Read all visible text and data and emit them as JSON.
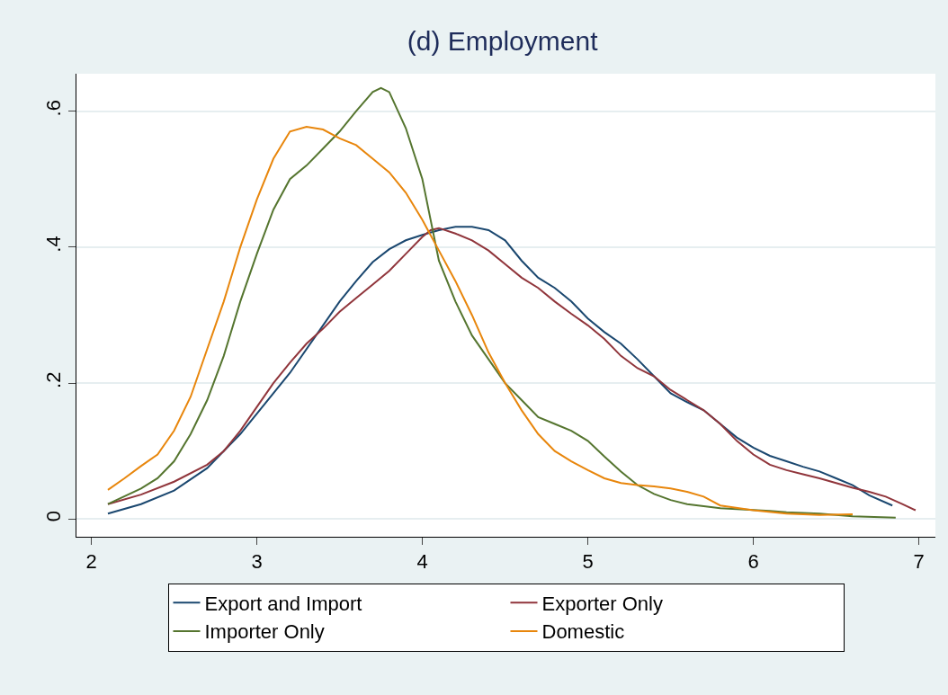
{
  "chart_data": {
    "type": "line",
    "title": "(d) Employment",
    "legend": "bottom",
    "grid": "y",
    "line_style": "solid",
    "marker": "none",
    "xlim": [
      1.91,
      7.1
    ],
    "xticks": [
      2,
      3,
      4,
      5,
      6,
      7
    ],
    "ylim": [
      -0.026,
      0.655
    ],
    "yticks": [
      0,
      {
        "value": 0.2,
        "label": ".2"
      },
      {
        "value": 0.4,
        "label": ".4"
      },
      {
        "value": 0.6,
        "label": ".6"
      }
    ],
    "series": [
      {
        "name": "Export and Import",
        "color": "#1a476f",
        "x": [
          2.1,
          2.3,
          2.5,
          2.7,
          2.9,
          3.0,
          3.2,
          3.4,
          3.5,
          3.6,
          3.7,
          3.8,
          3.9,
          4.0,
          4.1,
          4.2,
          4.3,
          4.4,
          4.5,
          4.6,
          4.7,
          4.8,
          4.9,
          5.0,
          5.1,
          5.2,
          5.3,
          5.4,
          5.5,
          5.6,
          5.7,
          5.8,
          5.9,
          6.0,
          6.1,
          6.2,
          6.3,
          6.4,
          6.5,
          6.6,
          6.7,
          6.84
        ],
        "values": [
          0.008,
          0.022,
          0.042,
          0.075,
          0.125,
          0.155,
          0.215,
          0.285,
          0.32,
          0.35,
          0.378,
          0.397,
          0.41,
          0.418,
          0.425,
          0.43,
          0.43,
          0.425,
          0.41,
          0.38,
          0.355,
          0.34,
          0.32,
          0.295,
          0.275,
          0.258,
          0.235,
          0.21,
          0.185,
          0.172,
          0.16,
          0.14,
          0.12,
          0.105,
          0.093,
          0.085,
          0.077,
          0.07,
          0.06,
          0.05,
          0.035,
          0.02
        ]
      },
      {
        "name": "Exporter Only",
        "color": "#90353b",
        "x": [
          2.1,
          2.3,
          2.5,
          2.7,
          2.8,
          2.9,
          3.0,
          3.1,
          3.2,
          3.3,
          3.4,
          3.5,
          3.6,
          3.7,
          3.8,
          3.9,
          4.0,
          4.05,
          4.1,
          4.2,
          4.3,
          4.4,
          4.5,
          4.6,
          4.7,
          4.8,
          4.9,
          5.0,
          5.1,
          5.2,
          5.3,
          5.4,
          5.5,
          5.6,
          5.7,
          5.8,
          5.9,
          6.0,
          6.1,
          6.2,
          6.3,
          6.4,
          6.5,
          6.6,
          6.7,
          6.8,
          6.9,
          6.98
        ],
        "values": [
          0.022,
          0.036,
          0.055,
          0.08,
          0.1,
          0.13,
          0.165,
          0.2,
          0.23,
          0.258,
          0.28,
          0.305,
          0.325,
          0.345,
          0.365,
          0.39,
          0.415,
          0.425,
          0.428,
          0.42,
          0.41,
          0.395,
          0.375,
          0.355,
          0.34,
          0.32,
          0.302,
          0.285,
          0.265,
          0.24,
          0.222,
          0.21,
          0.19,
          0.175,
          0.16,
          0.14,
          0.115,
          0.095,
          0.08,
          0.072,
          0.066,
          0.06,
          0.053,
          0.046,
          0.04,
          0.033,
          0.022,
          0.013
        ]
      },
      {
        "name": "Importer Only",
        "color": "#55752f",
        "x": [
          2.1,
          2.3,
          2.4,
          2.5,
          2.6,
          2.7,
          2.8,
          2.9,
          3.0,
          3.1,
          3.2,
          3.3,
          3.4,
          3.5,
          3.6,
          3.7,
          3.75,
          3.8,
          3.9,
          4.0,
          4.05,
          4.1,
          4.2,
          4.3,
          4.4,
          4.5,
          4.6,
          4.7,
          4.8,
          4.9,
          5.0,
          5.1,
          5.2,
          5.3,
          5.4,
          5.5,
          5.6,
          5.8,
          6.1,
          6.2,
          6.4,
          6.6,
          6.86
        ],
        "values": [
          0.022,
          0.045,
          0.06,
          0.085,
          0.125,
          0.175,
          0.24,
          0.32,
          0.39,
          0.455,
          0.5,
          0.52,
          0.545,
          0.57,
          0.6,
          0.628,
          0.634,
          0.628,
          0.575,
          0.5,
          0.44,
          0.38,
          0.32,
          0.27,
          0.235,
          0.2,
          0.175,
          0.15,
          0.14,
          0.13,
          0.115,
          0.092,
          0.07,
          0.05,
          0.037,
          0.028,
          0.022,
          0.016,
          0.012,
          0.01,
          0.008,
          0.004,
          0.002
        ]
      },
      {
        "name": "Domestic",
        "color": "#e8860c",
        "x": [
          2.1,
          2.2,
          2.3,
          2.4,
          2.5,
          2.6,
          2.7,
          2.8,
          2.9,
          3.0,
          3.1,
          3.2,
          3.3,
          3.4,
          3.5,
          3.6,
          3.7,
          3.8,
          3.9,
          4.0,
          4.1,
          4.2,
          4.3,
          4.4,
          4.5,
          4.6,
          4.7,
          4.8,
          4.9,
          5.0,
          5.1,
          5.2,
          5.3,
          5.4,
          5.5,
          5.6,
          5.7,
          5.8,
          6.0,
          6.2,
          6.4,
          6.6
        ],
        "values": [
          0.043,
          0.06,
          0.078,
          0.095,
          0.13,
          0.18,
          0.25,
          0.32,
          0.4,
          0.47,
          0.53,
          0.57,
          0.577,
          0.573,
          0.56,
          0.55,
          0.53,
          0.51,
          0.48,
          0.44,
          0.395,
          0.35,
          0.3,
          0.245,
          0.2,
          0.16,
          0.125,
          0.1,
          0.085,
          0.072,
          0.06,
          0.053,
          0.05,
          0.048,
          0.045,
          0.04,
          0.033,
          0.02,
          0.013,
          0.008,
          0.006,
          0.007
        ]
      }
    ]
  }
}
